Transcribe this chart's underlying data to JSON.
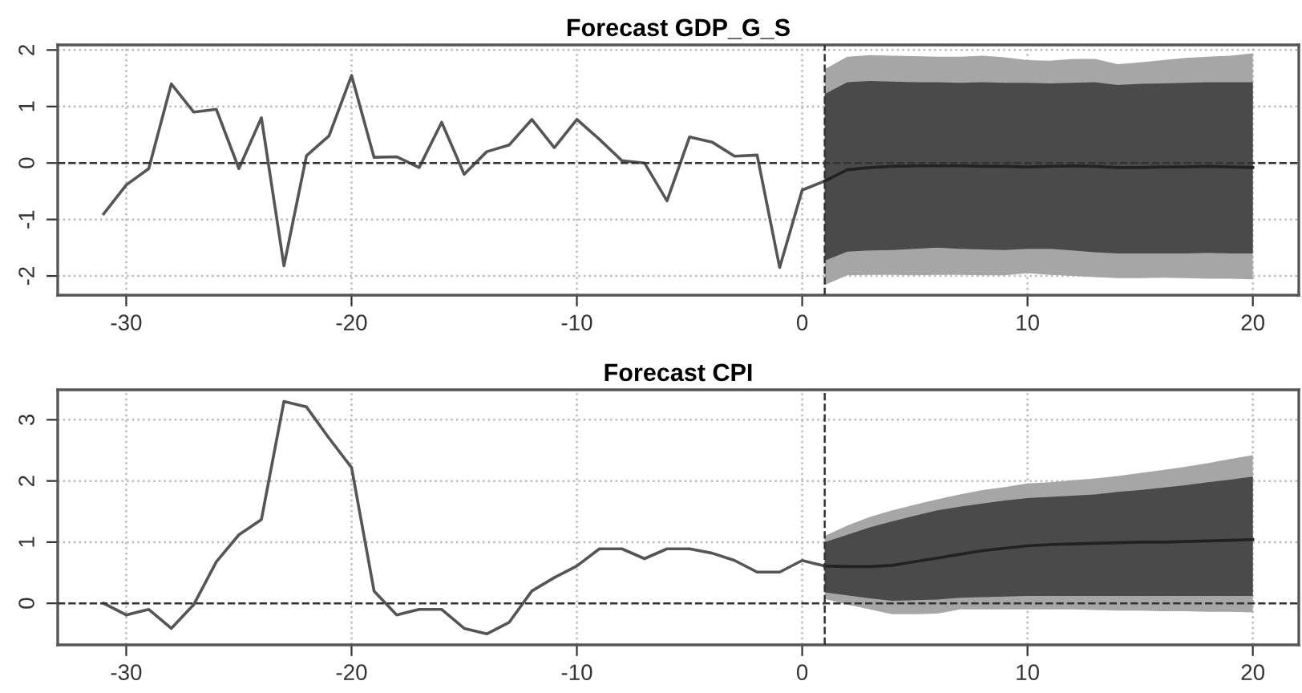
{
  "chart_data": [
    {
      "type": "line",
      "title": "Forecast GDP_G_S",
      "xlim": [
        -33.04,
        22.04
      ],
      "ylim": [
        -2.34,
        2.09
      ],
      "xticks": [
        -30,
        -20,
        -10,
        0,
        10,
        20
      ],
      "yticks": [
        -2,
        -1,
        0,
        1,
        2
      ],
      "grid": true,
      "ref_lines": [
        {
          "axis": "y",
          "value": 0,
          "color": "#333333",
          "line_style": "dashed"
        },
        {
          "axis": "x",
          "value": 1,
          "color": "#333333",
          "line_style": "dashed"
        }
      ],
      "series": [
        {
          "color": "#555555",
          "x": [
            -31,
            -30,
            -29,
            -28,
            -27,
            -26,
            -25,
            -24,
            -23,
            -22,
            -21,
            -20,
            -19,
            -18,
            -17,
            -16,
            -15,
            -14,
            -13,
            -12,
            -11,
            -10,
            -9,
            -8,
            -7,
            -6,
            -5,
            -4,
            -3,
            -2,
            -1,
            0,
            1
          ],
          "values": [
            -0.9,
            -0.39,
            -0.1,
            1.4,
            0.9,
            0.95,
            -0.1,
            0.8,
            -1.82,
            0.13,
            0.48,
            1.55,
            0.1,
            0.11,
            -0.08,
            0.72,
            -0.2,
            0.2,
            0.32,
            0.77,
            0.27,
            0.77,
            0.42,
            0.04,
            0.0,
            -0.67,
            0.46,
            0.37,
            0.12,
            0.14,
            -1.85,
            -0.48,
            -0.32
          ]
        },
        {
          "color": "#a6a6a6",
          "x": [
            1,
            2,
            3,
            4,
            5,
            6,
            7,
            8,
            9,
            10,
            11,
            12,
            13,
            14,
            15,
            16,
            17,
            18,
            19,
            20
          ],
          "values": [
            null,
            null,
            null,
            null,
            null,
            null,
            null,
            null,
            null,
            null,
            null,
            null,
            null,
            null,
            null,
            null,
            null,
            null,
            null,
            null
          ],
          "upper": [
            1.66,
            1.88,
            1.91,
            1.9,
            1.89,
            1.88,
            1.88,
            1.9,
            1.87,
            1.82,
            1.81,
            1.84,
            1.84,
            1.75,
            1.78,
            1.82,
            1.86,
            1.88,
            1.9,
            1.94
          ],
          "lower": [
            -2.16,
            -1.99,
            -1.98,
            -1.98,
            -1.99,
            -1.98,
            -1.98,
            -1.99,
            -1.99,
            -1.95,
            -1.98,
            -2.0,
            -2.02,
            -2.04,
            -2.04,
            -2.03,
            -2.04,
            -2.05,
            -2.05,
            -2.06
          ]
        },
        {
          "color": "#4a4a4a",
          "x": [
            1,
            2,
            3,
            4,
            5,
            6,
            7,
            8,
            9,
            10,
            11,
            12,
            13,
            14,
            15,
            16,
            17,
            18,
            19,
            20
          ],
          "values": [
            null,
            null,
            null,
            null,
            null,
            null,
            null,
            null,
            null,
            null,
            null,
            null,
            null,
            null,
            null,
            null,
            null,
            null,
            null,
            null
          ],
          "upper": [
            1.22,
            1.43,
            1.45,
            1.44,
            1.43,
            1.43,
            1.42,
            1.43,
            1.42,
            1.42,
            1.41,
            1.42,
            1.43,
            1.38,
            1.4,
            1.41,
            1.42,
            1.43,
            1.43,
            1.43
          ],
          "lower": [
            -1.73,
            -1.57,
            -1.55,
            -1.54,
            -1.52,
            -1.5,
            -1.52,
            -1.53,
            -1.54,
            -1.52,
            -1.52,
            -1.55,
            -1.58,
            -1.6,
            -1.6,
            -1.6,
            -1.6,
            -1.59,
            -1.6,
            -1.6
          ]
        },
        {
          "color": "#222222",
          "x": [
            1,
            2,
            3,
            4,
            5,
            6,
            7,
            8,
            9,
            10,
            11,
            12,
            13,
            14,
            15,
            16,
            17,
            18,
            19,
            20
          ],
          "values": [
            -0.32,
            -0.12,
            -0.08,
            -0.06,
            -0.05,
            -0.05,
            -0.05,
            -0.06,
            -0.06,
            -0.07,
            -0.06,
            -0.05,
            -0.06,
            -0.08,
            -0.08,
            -0.07,
            -0.07,
            -0.06,
            -0.07,
            -0.08
          ]
        }
      ]
    },
    {
      "type": "line",
      "title": "Forecast CPI",
      "xlim": [
        -33.04,
        22.04
      ],
      "ylim": [
        -0.68,
        3.49
      ],
      "xticks": [
        -30,
        -20,
        -10,
        0,
        10,
        20
      ],
      "yticks": [
        0,
        1,
        2,
        3
      ],
      "grid": true,
      "ref_lines": [
        {
          "axis": "y",
          "value": 0,
          "color": "#333333",
          "line_style": "dashed"
        },
        {
          "axis": "x",
          "value": 1,
          "color": "#333333",
          "line_style": "dashed"
        }
      ],
      "series": [
        {
          "color": "#555555",
          "x": [
            -31,
            -30,
            -29,
            -28,
            -27,
            -26,
            -25,
            -24,
            -23,
            -22,
            -21,
            -20,
            -19,
            -18,
            -17,
            -16,
            -15,
            -14,
            -13,
            -12,
            -11,
            -10,
            -9,
            -8,
            -7,
            -6,
            -5,
            -4,
            -3,
            -2,
            -1,
            0,
            1
          ],
          "values": [
            0,
            -0.19,
            -0.1,
            -0.41,
            -0.02,
            0.68,
            1.12,
            1.37,
            3.3,
            3.21,
            2.7,
            2.22,
            0.2,
            -0.19,
            -0.1,
            -0.1,
            -0.41,
            -0.5,
            -0.31,
            0.2,
            0.42,
            0.61,
            0.89,
            0.89,
            0.73,
            0.89,
            0.89,
            0.82,
            0.7,
            0.51,
            0.51,
            0.7,
            0.61
          ]
        },
        {
          "color": "#a6a6a6",
          "x": [
            1,
            2,
            3,
            4,
            5,
            6,
            7,
            8,
            9,
            10,
            11,
            12,
            13,
            14,
            15,
            16,
            17,
            18,
            19,
            20
          ],
          "values": [
            null,
            null,
            null,
            null,
            null,
            null,
            null,
            null,
            null,
            null,
            null,
            null,
            null,
            null,
            null,
            null,
            null,
            null,
            null,
            null
          ],
          "upper": [
            1.1,
            1.27,
            1.41,
            1.52,
            1.61,
            1.7,
            1.78,
            1.85,
            1.9,
            1.96,
            1.98,
            2.01,
            2.04,
            2.08,
            2.13,
            2.18,
            2.23,
            2.29,
            2.36,
            2.42
          ],
          "lower": [
            0.07,
            -0.02,
            -0.1,
            -0.18,
            -0.18,
            -0.17,
            -0.1,
            -0.1,
            -0.1,
            -0.1,
            -0.1,
            -0.1,
            -0.11,
            -0.12,
            -0.12,
            -0.13,
            -0.13,
            -0.14,
            -0.14,
            -0.15
          ]
        },
        {
          "color": "#4a4a4a",
          "x": [
            1,
            2,
            3,
            4,
            5,
            6,
            7,
            8,
            9,
            10,
            11,
            12,
            13,
            14,
            15,
            16,
            17,
            18,
            19,
            20
          ],
          "values": [
            null,
            null,
            null,
            null,
            null,
            null,
            null,
            null,
            null,
            null,
            null,
            null,
            null,
            null,
            null,
            null,
            null,
            null,
            null,
            null
          ],
          "upper": [
            1.0,
            1.12,
            1.24,
            1.34,
            1.43,
            1.52,
            1.58,
            1.63,
            1.68,
            1.72,
            1.74,
            1.76,
            1.78,
            1.82,
            1.85,
            1.89,
            1.93,
            1.98,
            2.02,
            2.07
          ],
          "lower": [
            0.18,
            0.13,
            0.08,
            0.04,
            0.05,
            0.06,
            0.09,
            0.1,
            0.11,
            0.12,
            0.12,
            0.12,
            0.12,
            0.12,
            0.12,
            0.12,
            0.12,
            0.12,
            0.12,
            0.12
          ]
        },
        {
          "color": "#222222",
          "x": [
            1,
            2,
            3,
            4,
            5,
            6,
            7,
            8,
            9,
            10,
            11,
            12,
            13,
            14,
            15,
            16,
            17,
            18,
            19,
            20
          ],
          "values": [
            0.61,
            0.6,
            0.6,
            0.62,
            0.68,
            0.74,
            0.8,
            0.86,
            0.9,
            0.94,
            0.96,
            0.97,
            0.98,
            0.99,
            1.0,
            1.0,
            1.01,
            1.02,
            1.03,
            1.04
          ]
        }
      ]
    }
  ]
}
